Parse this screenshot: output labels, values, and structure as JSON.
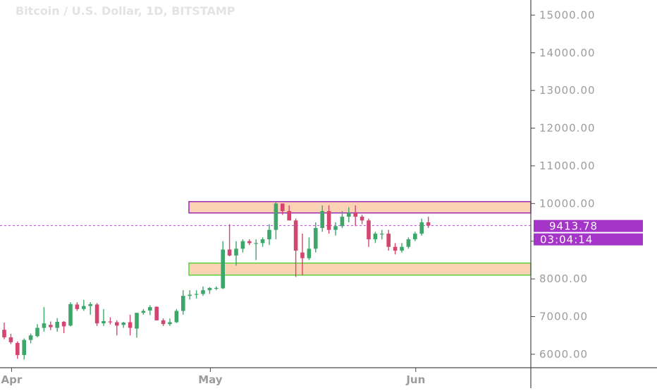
{
  "chart": {
    "title": "Bitcoin / U.S. Dollar, 1D, BITSTAMP",
    "last_price_label": "9413.78",
    "countdown_label": "03:04:14"
  },
  "colors": {
    "up": "#3fa66b",
    "down": "#d4456f",
    "zone_fill": "#fbd3b4",
    "resistance_border": "#9c27b0",
    "support_border": "#5ad33d",
    "price_line": "#b64ad6",
    "badge": "#a534c8",
    "axis": "#4a4a4a"
  },
  "chart_data": {
    "type": "candlestick",
    "title": "Bitcoin / U.S. Dollar, 1D, BITSTAMP",
    "x_ticks": [
      {
        "label": "Apr",
        "index": 1
      },
      {
        "label": "May",
        "index": 31
      },
      {
        "label": "Jun",
        "index": 62
      }
    ],
    "y_ticks": [
      "6000.00",
      "7000.00",
      "8000.00",
      "9000.00",
      "10000.00",
      "11000.00",
      "12000.00",
      "13000.00",
      "14000.00",
      "15000.00"
    ],
    "y_range": [
      5100,
      15400
    ],
    "last_price": 9413.78,
    "zones": [
      {
        "name": "resistance-zone",
        "low": 9750,
        "high": 10050
      },
      {
        "name": "support-zone",
        "low": 8100,
        "high": 8420
      }
    ],
    "candles": [
      [
        6650,
        6840,
        6400,
        6450
      ],
      [
        6450,
        6540,
        6270,
        6320
      ],
      [
        6300,
        6340,
        5880,
        5980
      ],
      [
        5980,
        6420,
        5860,
        6380
      ],
      [
        6380,
        6550,
        6290,
        6500
      ],
      [
        6480,
        6800,
        6450,
        6700
      ],
      [
        6700,
        7250,
        6600,
        6820
      ],
      [
        6780,
        6870,
        6640,
        6720
      ],
      [
        6700,
        6960,
        6600,
        6860
      ],
      [
        6860,
        6880,
        6560,
        6740
      ],
      [
        6760,
        7380,
        6740,
        7330
      ],
      [
        7320,
        7380,
        7150,
        7200
      ],
      [
        7200,
        7440,
        7150,
        7280
      ],
      [
        7280,
        7380,
        7050,
        7330
      ],
      [
        7320,
        7360,
        6750,
        6820
      ],
      [
        6820,
        7200,
        6750,
        6880
      ],
      [
        6870,
        6980,
        6790,
        6850
      ],
      [
        6850,
        6900,
        6500,
        6760
      ],
      [
        6780,
        6860,
        6700,
        6840
      ],
      [
        6850,
        7050,
        6500,
        6700
      ],
      [
        6680,
        7080,
        6440,
        7100
      ],
      [
        7100,
        7200,
        7050,
        7150
      ],
      [
        7160,
        7300,
        7040,
        7250
      ],
      [
        7260,
        7270,
        6900,
        6900
      ],
      [
        6900,
        6950,
        6750,
        6800
      ],
      [
        6800,
        6950,
        6750,
        6850
      ],
      [
        6850,
        7200,
        6830,
        7150
      ],
      [
        7150,
        7700,
        7050,
        7550
      ],
      [
        7550,
        7700,
        7450,
        7580
      ],
      [
        7580,
        7700,
        7480,
        7600
      ],
      [
        7600,
        7800,
        7550,
        7700
      ],
      [
        7700,
        7780,
        7600,
        7760
      ],
      [
        7760,
        7800,
        7700,
        7760
      ],
      [
        7750,
        9000,
        7730,
        8780
      ],
      [
        8780,
        9450,
        8600,
        8620
      ],
      [
        8620,
        9000,
        8350,
        8800
      ],
      [
        8800,
        9050,
        8700,
        9000
      ],
      [
        9000,
        9050,
        8900,
        8950
      ],
      [
        8950,
        9050,
        8500,
        8950
      ],
      [
        8950,
        9100,
        8850,
        9050
      ],
      [
        9050,
        9450,
        8900,
        9300
      ],
      [
        9300,
        10050,
        9050,
        10000
      ],
      [
        10000,
        10000,
        9700,
        9800
      ],
      [
        9800,
        9950,
        9600,
        9550
      ],
      [
        9550,
        9600,
        8050,
        8750
      ],
      [
        8700,
        9200,
        8100,
        8550
      ],
      [
        8550,
        9100,
        8500,
        8800
      ],
      [
        8800,
        9500,
        8700,
        9350
      ],
      [
        9350,
        9950,
        9250,
        9800
      ],
      [
        9800,
        9950,
        9200,
        9300
      ],
      [
        9300,
        9500,
        9150,
        9400
      ],
      [
        9400,
        9800,
        9350,
        9650
      ],
      [
        9650,
        9900,
        9500,
        9750
      ],
      [
        9750,
        9950,
        9400,
        9650
      ],
      [
        9650,
        9700,
        9450,
        9550
      ],
      [
        9550,
        9600,
        8850,
        9050
      ],
      [
        9050,
        9250,
        8950,
        9200
      ],
      [
        9200,
        9300,
        9050,
        9200
      ],
      [
        9200,
        9300,
        8750,
        8850
      ],
      [
        8850,
        8950,
        8650,
        8750
      ],
      [
        8750,
        8950,
        8700,
        8850
      ],
      [
        8850,
        9100,
        8800,
        9050
      ],
      [
        9050,
        9250,
        9000,
        9200
      ],
      [
        9200,
        9600,
        9150,
        9500
      ],
      [
        9500,
        9650,
        9350,
        9413.78
      ]
    ]
  }
}
